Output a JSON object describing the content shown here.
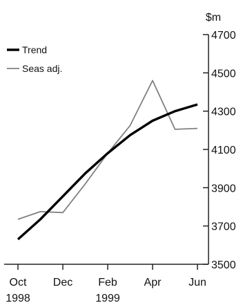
{
  "chart_data": {
    "type": "line",
    "title": "",
    "xlabel": "",
    "ylabel": "$m",
    "ylim": [
      3500,
      4700
    ],
    "yticks": [
      3500,
      3700,
      3900,
      4100,
      4300,
      4500,
      4700
    ],
    "x": [
      "1998-10",
      "1998-11",
      "1998-12",
      "1999-01",
      "1999-02",
      "1999-03",
      "1999-04",
      "1999-05",
      "1999-06"
    ],
    "xtick_labels": [
      {
        "month": "Oct",
        "year": "1998"
      },
      {
        "month": "Dec",
        "year": ""
      },
      {
        "month": "Feb",
        "year": "1999"
      },
      {
        "month": "Apr",
        "year": ""
      },
      {
        "month": "Jun",
        "year": ""
      }
    ],
    "series": [
      {
        "name": "Trend",
        "color": "#000000",
        "values": [
          3630,
          3735,
          3855,
          3975,
          4080,
          4175,
          4250,
          4300,
          4335
        ]
      },
      {
        "name": "Seas adj.",
        "color": "#808080",
        "values": [
          3735,
          3775,
          3770,
          3920,
          4080,
          4225,
          4460,
          4205,
          4210
        ]
      }
    ],
    "legend": "top-left",
    "grid": false
  }
}
